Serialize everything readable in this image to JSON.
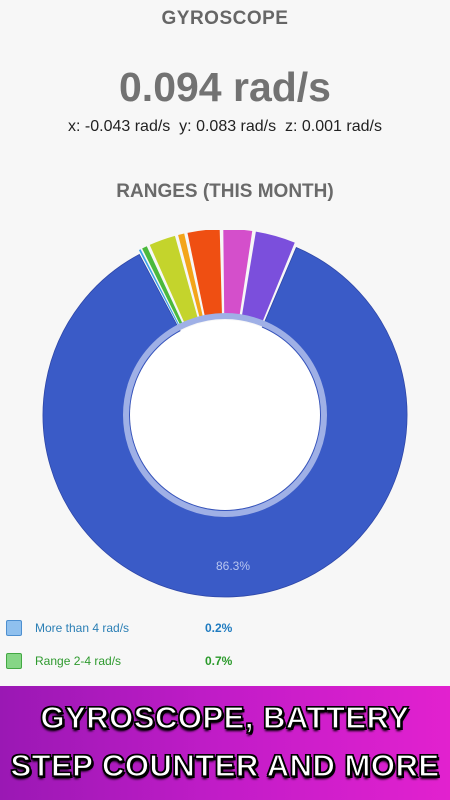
{
  "header": {
    "title": "GYROSCOPE"
  },
  "reading": {
    "magnitude": "0.094 rad/s",
    "axes_line": "x: -0.043 rad/s  y: 0.083 rad/s  z: 0.001 rad/s"
  },
  "ranges_title": "RANGES (THIS MONTH)",
  "chart_data": {
    "type": "pie",
    "style": "donut",
    "slices": [
      {
        "value": 86.3,
        "color": "#3a5bc7",
        "label": "86.3%"
      },
      {
        "value": 3.8,
        "color": "#7b4fdc"
      },
      {
        "value": 2.8,
        "color": "#d44fcb"
      },
      {
        "value": 3.1,
        "color": "#ef4f12"
      },
      {
        "value": 0.8,
        "color": "#f3a51a"
      },
      {
        "value": 2.6,
        "color": "#c4d42c"
      },
      {
        "value": 0.7,
        "color": "#4bb93c"
      },
      {
        "value": 0.2,
        "color": "#3aa3e8"
      }
    ]
  },
  "legend": [
    {
      "label": "More than 4 rad/s",
      "pct": "0.2%",
      "text_color": "#2b7fb5",
      "pct_color": "#1f7bc0",
      "swatch": "#8fc0ee",
      "swatch_border": "#4d8fd0"
    },
    {
      "label": "Range 2-4 rad/s",
      "pct": "0.7%",
      "text_color": "#2e9a2e",
      "pct_color": "#2b9a2b",
      "swatch": "#86d686",
      "swatch_border": "#43a843"
    }
  ],
  "banner": {
    "line1": "GYROSCOPE, BATTERY",
    "line2": "STEP COUNTER AND MORE"
  }
}
